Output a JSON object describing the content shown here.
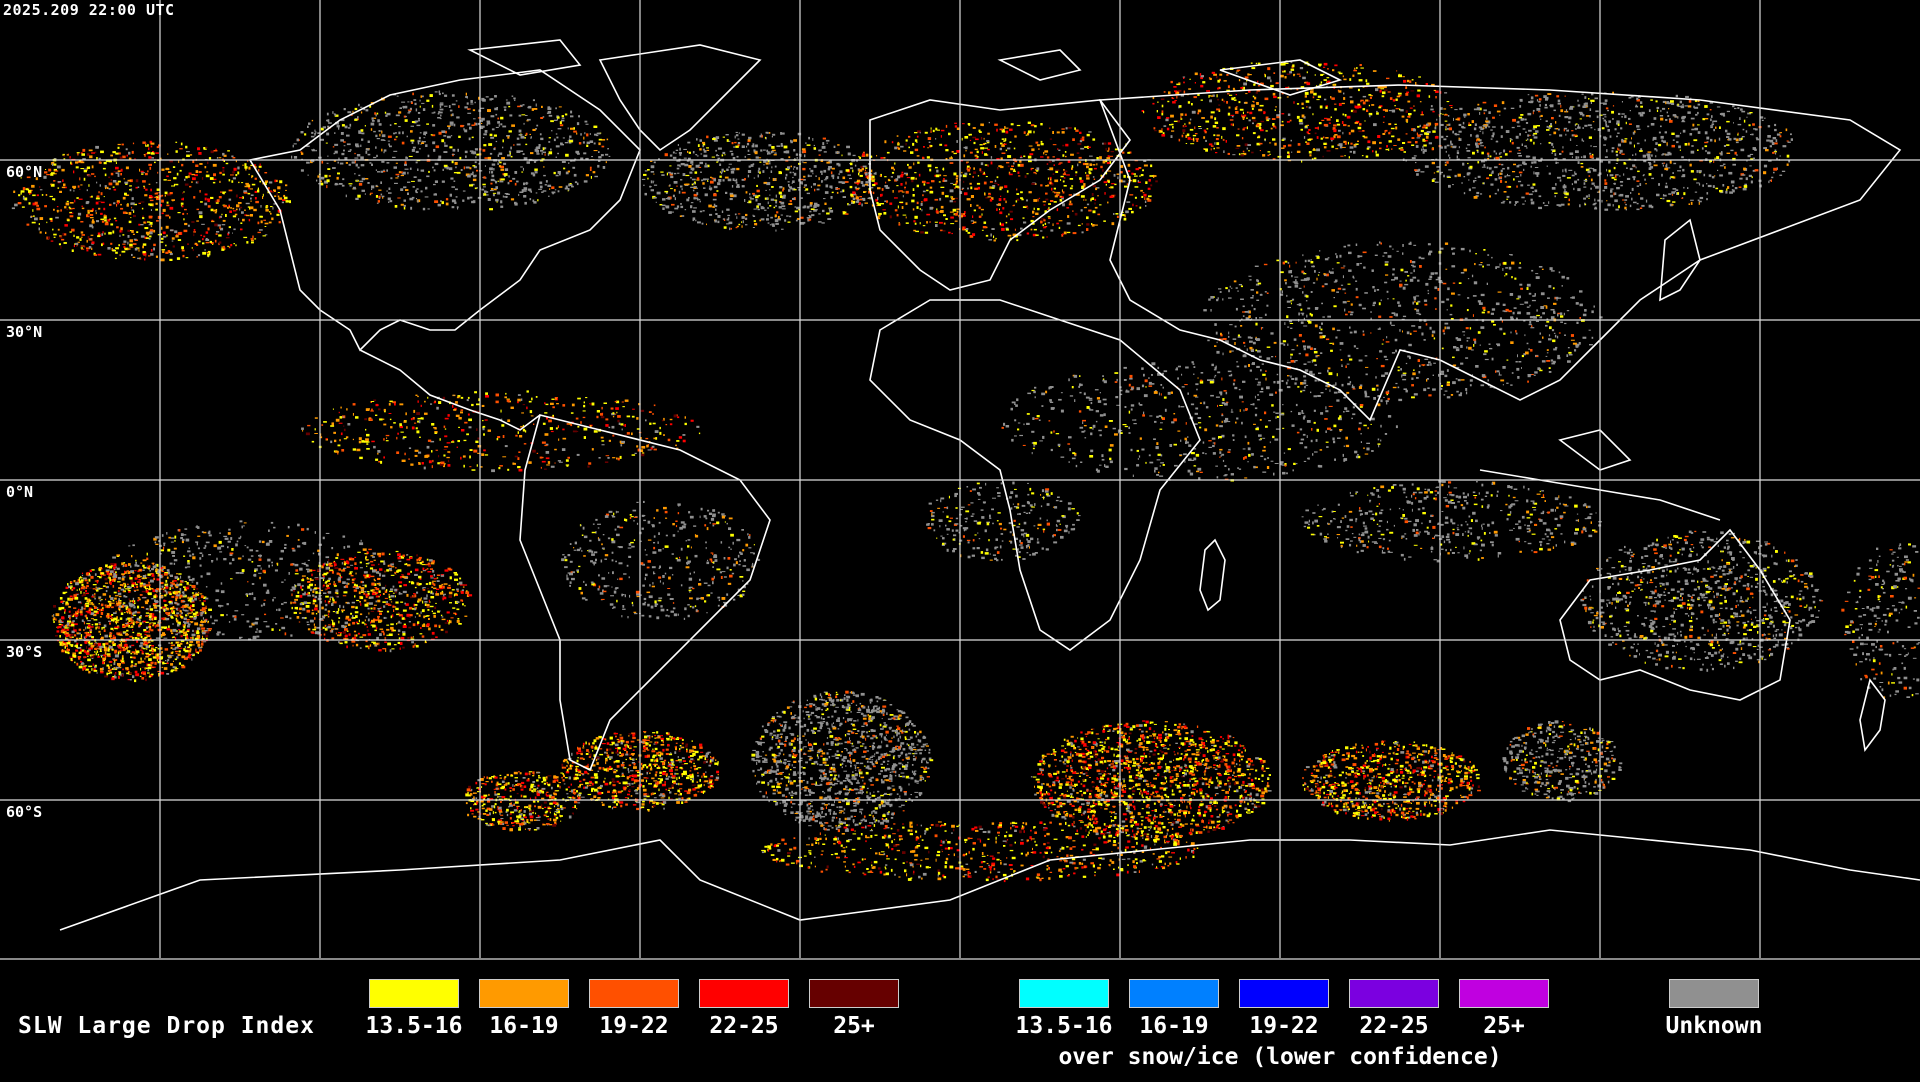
{
  "timestamp": "2025.209 22:00 UTC",
  "lat_labels": [
    "60°N",
    "30°N",
    "0°N",
    "30°S",
    "60°S"
  ],
  "legend": {
    "title": "SLW Large Drop Index",
    "water": [
      {
        "label": "13.5-16",
        "color": "#ffff00"
      },
      {
        "label": "16-19",
        "color": "#ff9a00"
      },
      {
        "label": "19-22",
        "color": "#ff5000"
      },
      {
        "label": "22-25",
        "color": "#ff0000"
      },
      {
        "label": "25+",
        "color": "#660000"
      }
    ],
    "snow_ice": [
      {
        "label": "13.5-16",
        "color": "#00ffff"
      },
      {
        "label": "16-19",
        "color": "#0080ff"
      },
      {
        "label": "19-22",
        "color": "#0000ff"
      },
      {
        "label": "22-25",
        "color": "#7b00e0"
      },
      {
        "label": "25+",
        "color": "#c000e0"
      }
    ],
    "snow_ice_note": "over snow/ice (lower confidence)",
    "unknown": {
      "label": "Unknown",
      "color": "#909090"
    }
  }
}
